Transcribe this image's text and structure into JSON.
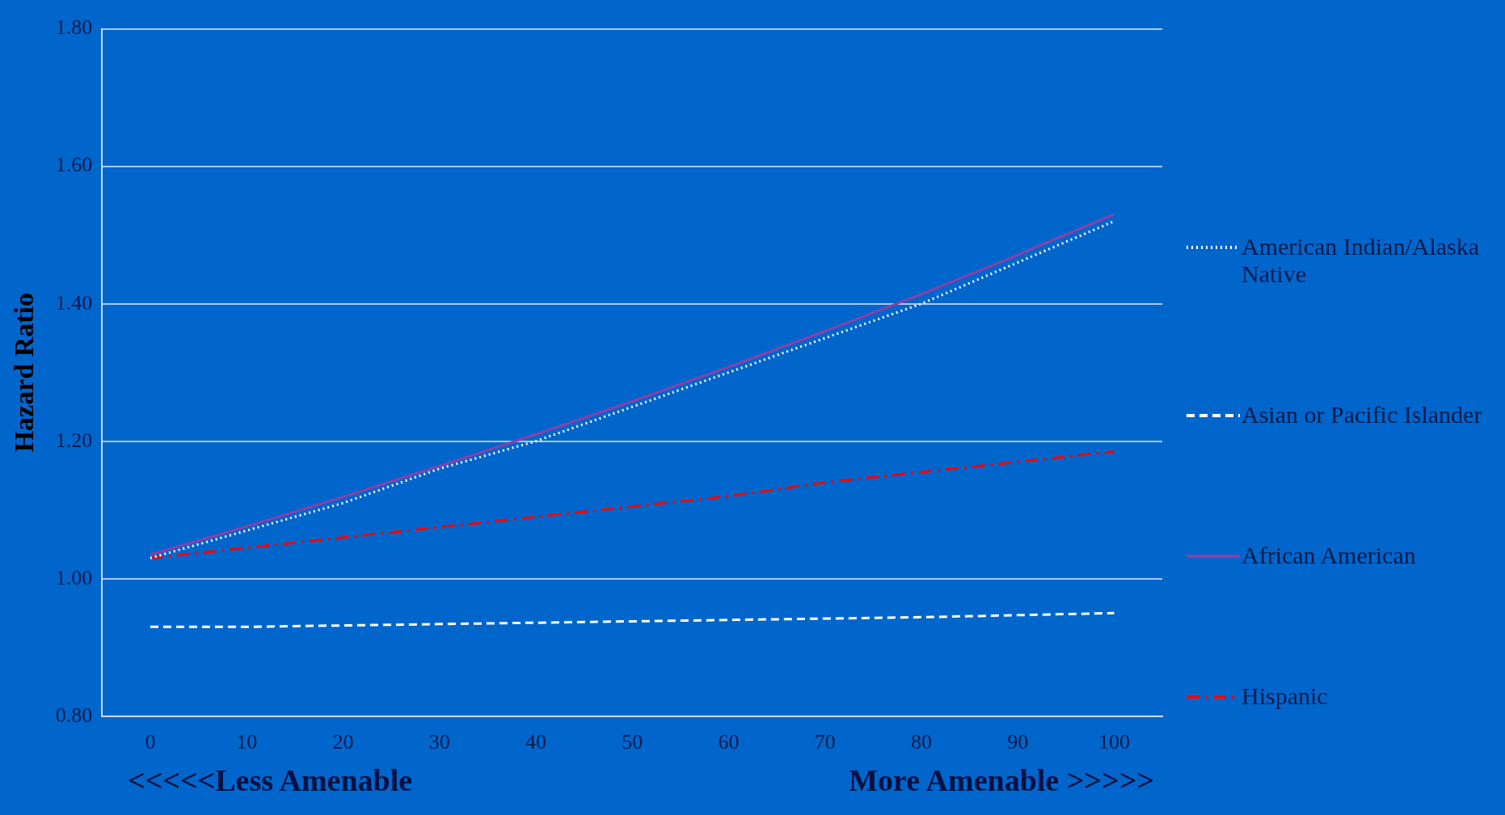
{
  "chart_data": {
    "type": "line",
    "ylabel": "Hazard Ratio",
    "categories": [
      "0",
      "10",
      "20",
      "30",
      "40",
      "50",
      "60",
      "70",
      "80",
      "90",
      "100"
    ],
    "series": [
      {
        "name": "American Indian/Alaska Native",
        "color": "#ffffff",
        "line_style": "dotted",
        "values": [
          1.03,
          1.07,
          1.11,
          1.16,
          1.2,
          1.25,
          1.3,
          1.35,
          1.4,
          1.46,
          1.52
        ]
      },
      {
        "name": "Asian or Pacific Islander",
        "color": "#ffffff",
        "line_style": "dashed",
        "values": [
          0.93,
          0.93,
          0.932,
          0.934,
          0.936,
          0.938,
          0.94,
          0.942,
          0.944,
          0.947,
          0.95
        ]
      },
      {
        "name": "African American",
        "color": "#8e3fa8",
        "line_style": "solid",
        "values": [
          1.035,
          1.076,
          1.119,
          1.164,
          1.21,
          1.258,
          1.308,
          1.36,
          1.414,
          1.471,
          1.53
        ]
      },
      {
        "name": "Hispanic",
        "color": "#ff0000",
        "line_style": "dashdot",
        "values": [
          1.03,
          1.045,
          1.06,
          1.075,
          1.09,
          1.105,
          1.12,
          1.14,
          1.155,
          1.17,
          1.185
        ]
      }
    ],
    "ylim": [
      0.8,
      1.8
    ],
    "yticks": [
      {
        "value": 0.8,
        "label": "0.80"
      },
      {
        "value": 1.0,
        "label": "1.00"
      },
      {
        "value": 1.2,
        "label": "1.20"
      },
      {
        "value": 1.4,
        "label": "1.40"
      },
      {
        "value": 1.6,
        "label": "1.60"
      },
      {
        "value": 1.8,
        "label": "1.80"
      }
    ],
    "grid": "y",
    "legend": "right",
    "marker": "none",
    "annotations": [
      "<<<<<Less Amenable",
      "More Amenable >>>>>"
    ]
  }
}
